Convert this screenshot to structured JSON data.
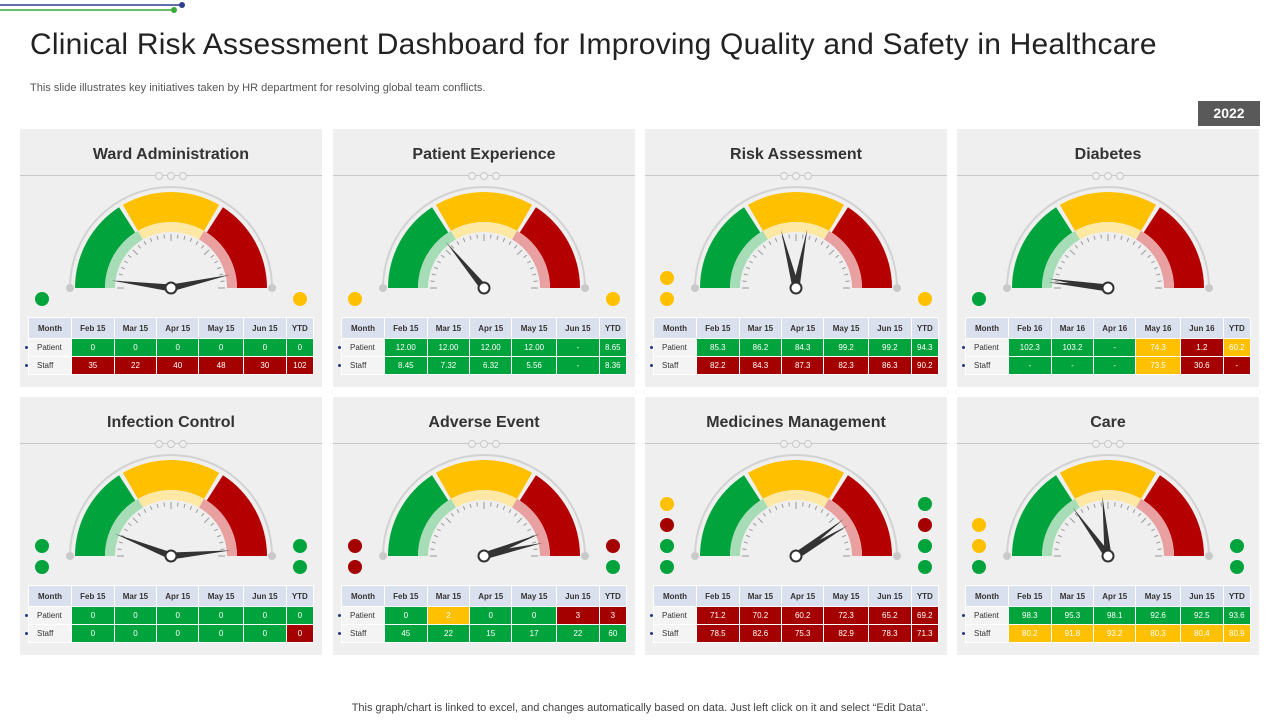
{
  "header": {
    "title": "Clinical Risk Assessment Dashboard for Improving Quality and Safety in Healthcare",
    "subtitle": "This slide illustrates key initiatives taken by HR department for resolving global team conflicts.",
    "year_badge": "2022"
  },
  "footer": {
    "note": "This graph/chart is linked to excel,  and changes automatically based on data. Just left click on it and select “Edit Data”."
  },
  "colors": {
    "green": "#00a33c",
    "red": "#a50000",
    "yellow": "#ffc000",
    "header_row": "#dbe0ee",
    "year_badge": "#595959"
  },
  "panels": [
    {
      "title": "Ward Administration",
      "gauge_needles": [
        0.04,
        0.93
      ],
      "indicators_left": [
        "green"
      ],
      "indicators_right": [
        "yellow"
      ],
      "table": {
        "columns": [
          "Month",
          "Feb 15",
          "Mar 15",
          "Apr 15",
          "May 15",
          "Jun 15",
          "YTD"
        ],
        "rows": [
          {
            "label": "Patient",
            "cells": [
              {
                "v": "0",
                "c": "g"
              },
              {
                "v": "0",
                "c": "g"
              },
              {
                "v": "0",
                "c": "g"
              },
              {
                "v": "0",
                "c": "g"
              },
              {
                "v": "0",
                "c": "g"
              },
              {
                "v": "0",
                "c": "g"
              }
            ]
          },
          {
            "label": "Staff",
            "cells": [
              {
                "v": "35",
                "c": "r"
              },
              {
                "v": "22",
                "c": "r"
              },
              {
                "v": "40",
                "c": "r"
              },
              {
                "v": "48",
                "c": "r"
              },
              {
                "v": "30",
                "c": "r"
              },
              {
                "v": "102",
                "c": "r"
              }
            ]
          }
        ]
      }
    },
    {
      "title": "Patient Experience",
      "gauge_needles": [
        0.28
      ],
      "indicators_left": [
        "yellow"
      ],
      "indicators_right": [
        "yellow"
      ],
      "table": {
        "columns": [
          "Month",
          "Feb 15",
          "Mar 15",
          "Apr 15",
          "May 15",
          "Jun 15",
          "YTD"
        ],
        "rows": [
          {
            "label": "Patient",
            "cells": [
              {
                "v": "12.00",
                "c": "g"
              },
              {
                "v": "12.00",
                "c": "g"
              },
              {
                "v": "12.00",
                "c": "g"
              },
              {
                "v": "12.00",
                "c": "g"
              },
              {
                "v": "-",
                "c": "g"
              },
              {
                "v": "8.65",
                "c": "g"
              }
            ]
          },
          {
            "label": "Staff",
            "cells": [
              {
                "v": "8.45",
                "c": "g"
              },
              {
                "v": "7.32",
                "c": "g"
              },
              {
                "v": "6.32",
                "c": "g"
              },
              {
                "v": "5.56",
                "c": "g"
              },
              {
                "v": "-",
                "c": "g"
              },
              {
                "v": "8.36",
                "c": "g"
              }
            ]
          }
        ]
      }
    },
    {
      "title": "Risk Assessment",
      "gauge_needles": [
        0.42,
        0.56
      ],
      "indicators_left": [
        "yellow",
        "yellow"
      ],
      "indicators_right": [
        "yellow"
      ],
      "table": {
        "columns": [
          "Month",
          "Feb 15",
          "Mar 15",
          "Apr 15",
          "May 15",
          "Jun 15",
          "YTD"
        ],
        "rows": [
          {
            "label": "Patient",
            "cells": [
              {
                "v": "85.3",
                "c": "g"
              },
              {
                "v": "86.2",
                "c": "g"
              },
              {
                "v": "84.3",
                "c": "g"
              },
              {
                "v": "99.2",
                "c": "g"
              },
              {
                "v": "99.2",
                "c": "g"
              },
              {
                "v": "94.3",
                "c": "g"
              }
            ]
          },
          {
            "label": "Staff",
            "cells": [
              {
                "v": "82.2",
                "c": "r"
              },
              {
                "v": "84.3",
                "c": "r"
              },
              {
                "v": "87.3",
                "c": "r"
              },
              {
                "v": "82.3",
                "c": "r"
              },
              {
                "v": "86.3",
                "c": "r"
              },
              {
                "v": "90.2",
                "c": "r"
              }
            ]
          }
        ]
      }
    },
    {
      "title": "Diabetes",
      "gauge_needles": [
        0.03,
        0.05
      ],
      "indicators_left": [
        "green"
      ],
      "indicators_right": [],
      "table": {
        "columns": [
          "Month",
          "Feb 16",
          "Mar 16",
          "Apr 16",
          "May 16",
          "Jun 16",
          "YTD"
        ],
        "rows": [
          {
            "label": "Patient",
            "cells": [
              {
                "v": "102.3",
                "c": "g"
              },
              {
                "v": "103.2",
                "c": "g"
              },
              {
                "v": "-",
                "c": "g"
              },
              {
                "v": "74.3",
                "c": "y"
              },
              {
                "v": "1.2",
                "c": "r"
              },
              {
                "v": "60.2",
                "c": "y"
              }
            ]
          },
          {
            "label": "Staff",
            "cells": [
              {
                "v": "-",
                "c": "g"
              },
              {
                "v": "-",
                "c": "g"
              },
              {
                "v": "-",
                "c": "g"
              },
              {
                "v": "73.5",
                "c": "y"
              },
              {
                "v": "30.6",
                "c": "r"
              },
              {
                "v": "-",
                "c": "r"
              }
            ]
          }
        ]
      }
    },
    {
      "title": "Infection Control",
      "gauge_needles": [
        0.12,
        0.97
      ],
      "indicators_left": [
        "green",
        "green"
      ],
      "indicators_right": [
        "green",
        "green"
      ],
      "table": {
        "columns": [
          "Month",
          "Feb 15",
          "Mar 15",
          "Apr 15",
          "May 15",
          "Jun 15",
          "YTD"
        ],
        "rows": [
          {
            "label": "Patient",
            "cells": [
              {
                "v": "0",
                "c": "g"
              },
              {
                "v": "0",
                "c": "g"
              },
              {
                "v": "0",
                "c": "g"
              },
              {
                "v": "0",
                "c": "g"
              },
              {
                "v": "0",
                "c": "g"
              },
              {
                "v": "0",
                "c": "g"
              }
            ]
          },
          {
            "label": "Staff",
            "cells": [
              {
                "v": "0",
                "c": "g"
              },
              {
                "v": "0",
                "c": "g"
              },
              {
                "v": "0",
                "c": "g"
              },
              {
                "v": "0",
                "c": "g"
              },
              {
                "v": "0",
                "c": "g"
              },
              {
                "v": "0",
                "c": "r"
              }
            ]
          }
        ]
      }
    },
    {
      "title": "Adverse Event",
      "gauge_needles": [
        0.88,
        0.93
      ],
      "indicators_left": [
        "red",
        "red"
      ],
      "indicators_right": [
        "red",
        "green"
      ],
      "table": {
        "columns": [
          "Month",
          "Feb 15",
          "Mar 15",
          "Apr 15",
          "May 15",
          "Jun 15",
          "YTD"
        ],
        "rows": [
          {
            "label": "Patient",
            "cells": [
              {
                "v": "0",
                "c": "g"
              },
              {
                "v": "2",
                "c": "y"
              },
              {
                "v": "0",
                "c": "g"
              },
              {
                "v": "0",
                "c": "g"
              },
              {
                "v": "3",
                "c": "r"
              },
              {
                "v": "3",
                "c": "r"
              }
            ]
          },
          {
            "label": "Staff",
            "cells": [
              {
                "v": "45",
                "c": "g"
              },
              {
                "v": "22",
                "c": "g"
              },
              {
                "v": "15",
                "c": "g"
              },
              {
                "v": "17",
                "c": "g"
              },
              {
                "v": "22",
                "c": "g"
              },
              {
                "v": "60",
                "c": "g"
              }
            ]
          }
        ]
      }
    },
    {
      "title": "Medicines Management",
      "gauge_needles": [
        0.79,
        0.83
      ],
      "indicators_left": [
        "yellow",
        "red",
        "green",
        "green"
      ],
      "indicators_right": [
        "green",
        "red",
        "green",
        "green"
      ],
      "table": {
        "columns": [
          "Month",
          "Feb 15",
          "Mar 15",
          "Apr 15",
          "May 15",
          "Jun 15",
          "YTD"
        ],
        "rows": [
          {
            "label": "Patient",
            "cells": [
              {
                "v": "71.2",
                "c": "r"
              },
              {
                "v": "70.2",
                "c": "r"
              },
              {
                "v": "60.2",
                "c": "r"
              },
              {
                "v": "72.3",
                "c": "r"
              },
              {
                "v": "65.2",
                "c": "r"
              },
              {
                "v": "69.2",
                "c": "r"
              }
            ]
          },
          {
            "label": "Staff",
            "cells": [
              {
                "v": "78.5",
                "c": "r"
              },
              {
                "v": "82.6",
                "c": "r"
              },
              {
                "v": "75.3",
                "c": "r"
              },
              {
                "v": "82.9",
                "c": "r"
              },
              {
                "v": "78.3",
                "c": "r"
              },
              {
                "v": "71.3",
                "c": "r"
              }
            ]
          }
        ]
      }
    },
    {
      "title": "Care",
      "gauge_needles": [
        0.3,
        0.47
      ],
      "indicators_left": [
        "yellow",
        "yellow",
        "green"
      ],
      "indicators_right": [
        "green",
        "green"
      ],
      "table": {
        "columns": [
          "Month",
          "Feb 15",
          "Mar 15",
          "Apr 15",
          "May 15",
          "Jun 15",
          "YTD"
        ],
        "rows": [
          {
            "label": "Patient",
            "cells": [
              {
                "v": "98.3",
                "c": "g"
              },
              {
                "v": "95.3",
                "c": "g"
              },
              {
                "v": "98.1",
                "c": "g"
              },
              {
                "v": "92.6",
                "c": "g"
              },
              {
                "v": "92.5",
                "c": "g"
              },
              {
                "v": "93.6",
                "c": "g"
              }
            ]
          },
          {
            "label": "Staff",
            "cells": [
              {
                "v": "80.2",
                "c": "y"
              },
              {
                "v": "91.8",
                "c": "y"
              },
              {
                "v": "93.2",
                "c": "y"
              },
              {
                "v": "80.3",
                "c": "y"
              },
              {
                "v": "80.4",
                "c": "y"
              },
              {
                "v": "80.9",
                "c": "y"
              }
            ]
          }
        ]
      }
    }
  ]
}
